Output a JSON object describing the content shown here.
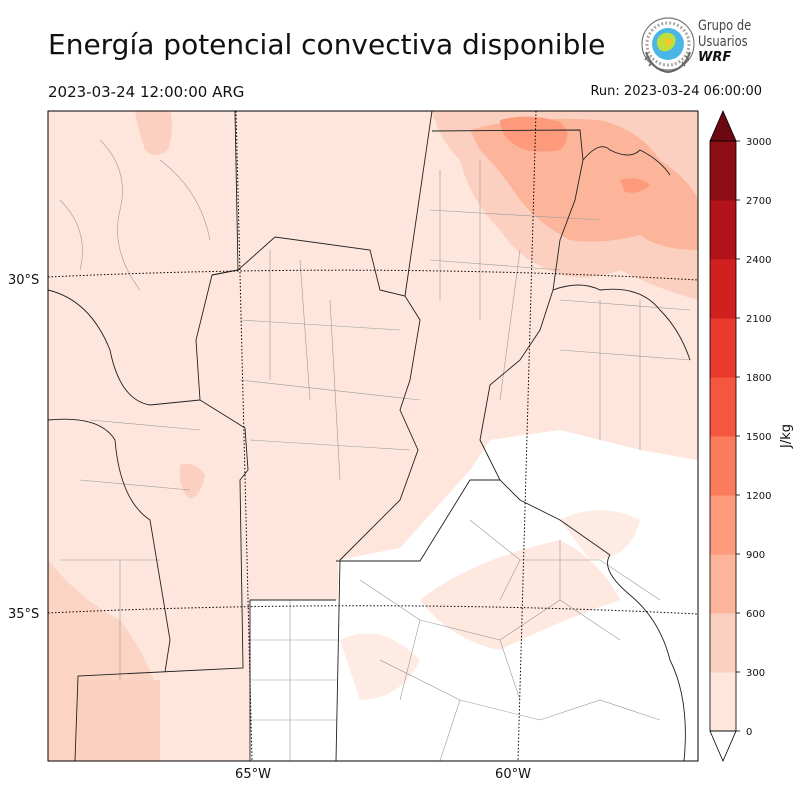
{
  "title": "Energía potencial convectiva disponible",
  "valid_time": "2023-03-24 12:00:00 ARG",
  "run_time": "Run: 2023-03-24 06:00:00",
  "logo": {
    "line1": "Grupo de",
    "line2": "Usuarios",
    "line3": "WRF"
  },
  "map": {
    "lat_labels": [
      "30°S",
      "35°S"
    ],
    "lon_labels": [
      "65°W",
      "60°W"
    ]
  },
  "colorbar": {
    "label": "J/kg",
    "ticks": [
      "0",
      "300",
      "600",
      "900",
      "1200",
      "1500",
      "1800",
      "2100",
      "2400",
      "2700",
      "3000"
    ],
    "colors": [
      "#fee6dd",
      "#fcd0c0",
      "#fcb59b",
      "#fc9a7b",
      "#fb7c5c",
      "#f5563f",
      "#ea3a2e",
      "#d0201f",
      "#b21318",
      "#8c0d13",
      "#6c0812"
    ],
    "extend": "both"
  }
}
